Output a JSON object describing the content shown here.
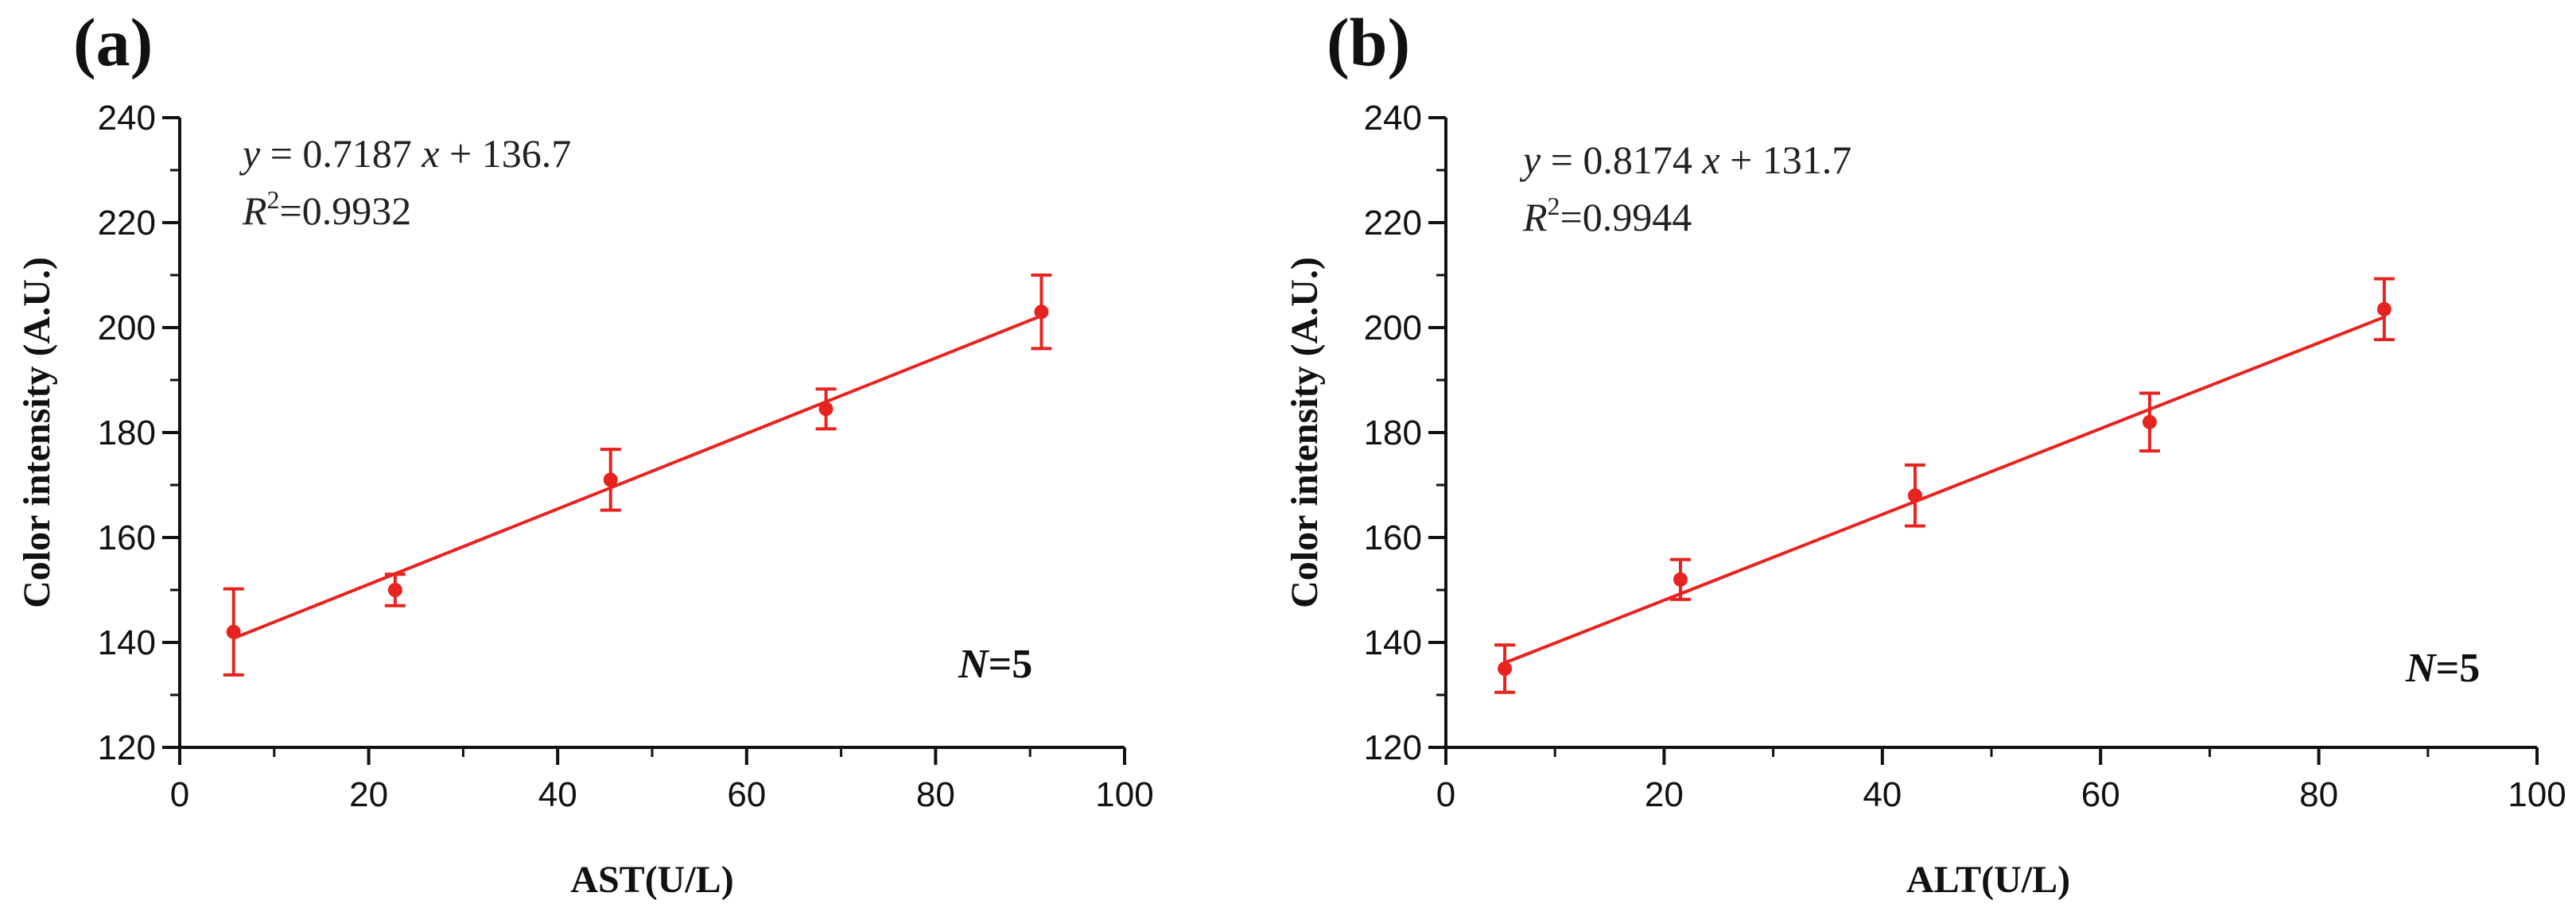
{
  "chart_data": [
    {
      "type": "scatter",
      "panel_label": "(a)",
      "xlabel": "AST(U/L)",
      "ylabel": "Color intensity (A.U.)",
      "xlim": [
        0,
        100
      ],
      "ylim": [
        120,
        240
      ],
      "xticks": [
        0,
        20,
        40,
        60,
        80,
        100
      ],
      "yticks": [
        120,
        140,
        160,
        180,
        200,
        220,
        240
      ],
      "points": [
        {
          "x": 5.7,
          "y": 142,
          "err": 8.2
        },
        {
          "x": 22.8,
          "y": 150,
          "err": 3.0
        },
        {
          "x": 45.6,
          "y": 171,
          "err": 5.8
        },
        {
          "x": 68.4,
          "y": 184.5,
          "err": 3.8
        },
        {
          "x": 91.2,
          "y": 203,
          "err": 7.0
        }
      ],
      "fit": {
        "slope": 0.7187,
        "intercept": 136.7,
        "x_range": [
          5.7,
          91.2
        ]
      },
      "equation": {
        "y_var": "y",
        "eq_mid": " = 0.7187 ",
        "x_var": "x",
        "eq_end": " + 136.7",
        "r2_base": "R",
        "r2_sup": "2",
        "r2_value": "=0.9932"
      },
      "n_label": {
        "n_var": "N",
        "n_value": "=5"
      },
      "color": "#e8231f"
    },
    {
      "type": "scatter",
      "panel_label": "(b)",
      "xlabel": "ALT(U/L)",
      "ylabel": "Color intensity (A.U.)",
      "xlim": [
        0,
        100
      ],
      "ylim": [
        120,
        240
      ],
      "xticks": [
        0,
        20,
        40,
        60,
        80,
        100
      ],
      "yticks": [
        120,
        140,
        160,
        180,
        200,
        220,
        240
      ],
      "points": [
        {
          "x": 5.4,
          "y": 135,
          "err": 4.5
        },
        {
          "x": 21.5,
          "y": 152,
          "err": 3.8
        },
        {
          "x": 43.0,
          "y": 168,
          "err": 5.8
        },
        {
          "x": 64.5,
          "y": 182,
          "err": 5.5
        },
        {
          "x": 86.0,
          "y": 203.5,
          "err": 5.8
        }
      ],
      "fit": {
        "slope": 0.8174,
        "intercept": 131.7,
        "x_range": [
          5.4,
          86.0
        ]
      },
      "equation": {
        "y_var": "y",
        "eq_mid": " = 0.8174 ",
        "x_var": "x",
        "eq_end": " + 131.7",
        "r2_base": "R",
        "r2_sup": "2",
        "r2_value": "=0.9944"
      },
      "n_label": {
        "n_var": "N",
        "n_value": "=5"
      },
      "color": "#e8231f"
    }
  ]
}
